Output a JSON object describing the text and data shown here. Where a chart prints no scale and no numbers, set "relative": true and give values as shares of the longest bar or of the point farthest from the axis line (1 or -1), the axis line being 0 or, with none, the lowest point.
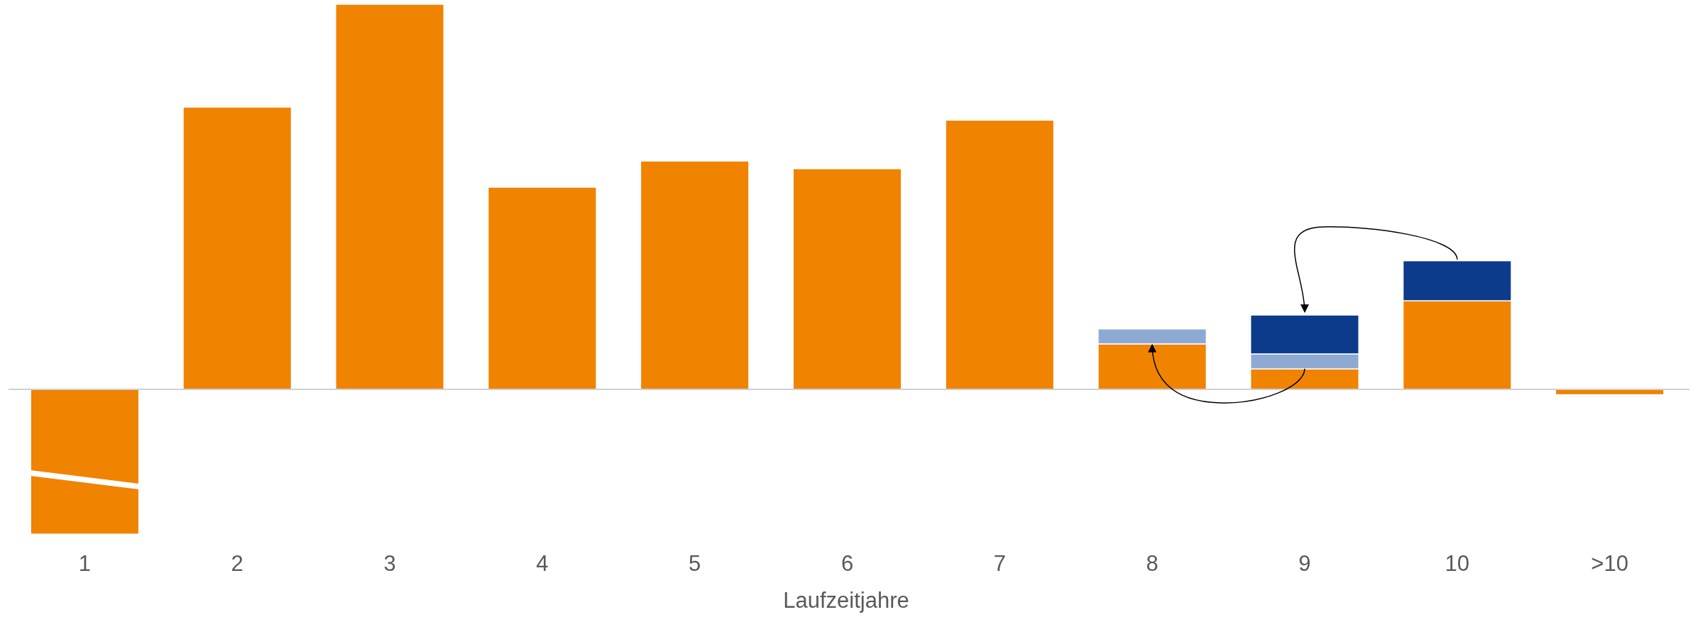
{
  "chart_data": {
    "type": "bar",
    "relative": true,
    "stacked": true,
    "xlabel": "Laufzeitjahre",
    "categories": [
      "1",
      "2",
      "3",
      "4",
      "5",
      "6",
      "7",
      "8",
      "9",
      "10",
      ">10"
    ],
    "series": [
      {
        "color": "#f08300",
        "values": [
          -0.376,
          0.733,
          1,
          0.525,
          0.593,
          0.573,
          0.699,
          0.118,
          0.053,
          0.23,
          -0.014
        ]
      },
      {
        "color": "#8eaad3",
        "values": [
          null,
          null,
          null,
          null,
          null,
          null,
          null,
          0.039,
          0.039,
          null,
          null
        ]
      },
      {
        "color": "#0d3b8c",
        "values": [
          null,
          null,
          null,
          null,
          null,
          null,
          null,
          null,
          0.101,
          0.104,
          null
        ]
      }
    ]
  }
}
